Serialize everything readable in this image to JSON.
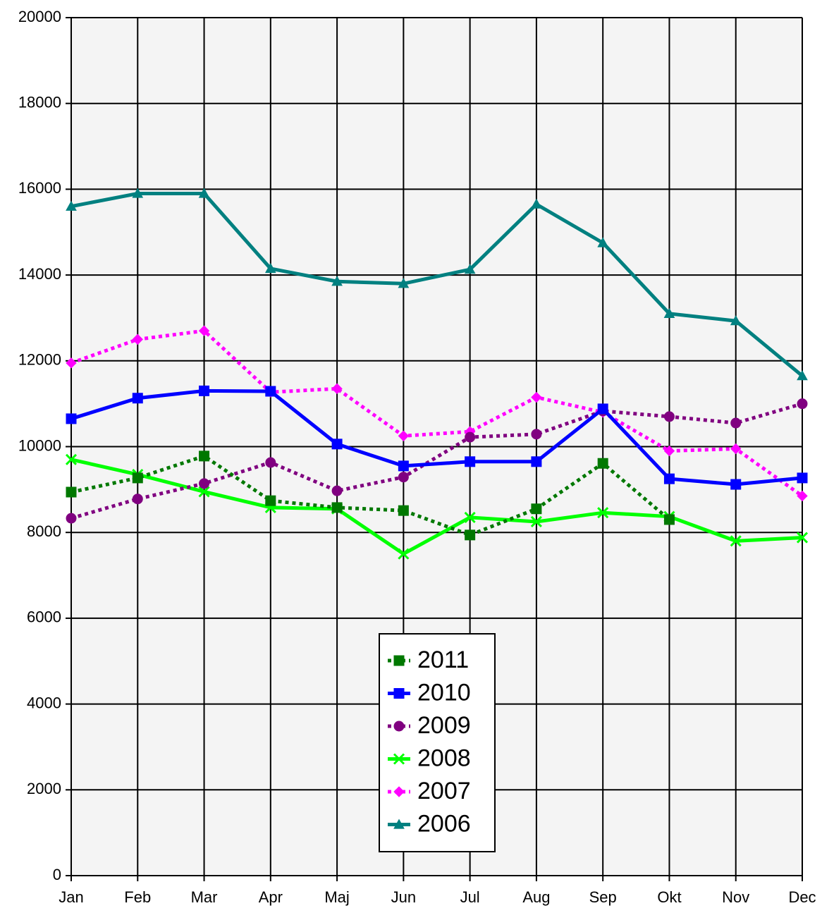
{
  "chart_data": {
    "type": "line",
    "categories": [
      "Jan",
      "Feb",
      "Mar",
      "Apr",
      "Maj",
      "Jun",
      "Jul",
      "Aug",
      "Sep",
      "Okt",
      "Nov",
      "Dec"
    ],
    "series": [
      {
        "name": "2011",
        "color": "#007800",
        "dashed": true,
        "marker": "square",
        "values": [
          8940,
          9270,
          9780,
          8740,
          8580,
          8510,
          7940,
          8550,
          9610,
          8300,
          null,
          null
        ]
      },
      {
        "name": "2010",
        "color": "#0000ff",
        "dashed": false,
        "marker": "square",
        "values": [
          10650,
          11130,
          11300,
          11290,
          10060,
          9550,
          9650,
          9650,
          10880,
          9250,
          9120,
          9270
        ]
      },
      {
        "name": "2009",
        "color": "#800080",
        "dashed": true,
        "marker": "circle",
        "values": [
          8330,
          8780,
          9140,
          9630,
          8970,
          9290,
          10220,
          10290,
          10830,
          10700,
          10550,
          11000
        ]
      },
      {
        "name": "2008",
        "color": "#00ff00",
        "dashed": false,
        "marker": "x",
        "values": [
          9700,
          9350,
          8950,
          8580,
          8550,
          7500,
          8350,
          8250,
          8460,
          8370,
          7800,
          7880
        ]
      },
      {
        "name": "2007",
        "color": "#ff00ff",
        "dashed": true,
        "marker": "diamond",
        "values": [
          11950,
          12500,
          12700,
          11270,
          11350,
          10250,
          10350,
          11150,
          10800,
          9900,
          9950,
          8850
        ]
      },
      {
        "name": "2006",
        "color": "#008080",
        "dashed": false,
        "marker": "triangle",
        "values": [
          15600,
          15900,
          15900,
          14150,
          13850,
          13800,
          14130,
          15650,
          14750,
          13100,
          12930,
          11650
        ]
      }
    ],
    "ylim": [
      0,
      20000
    ],
    "yticks": [
      0,
      2000,
      4000,
      6000,
      8000,
      10000,
      12000,
      14000,
      16000,
      18000,
      20000
    ],
    "grid": true,
    "legend": "center-bottom",
    "background": "#f4f4f4"
  }
}
